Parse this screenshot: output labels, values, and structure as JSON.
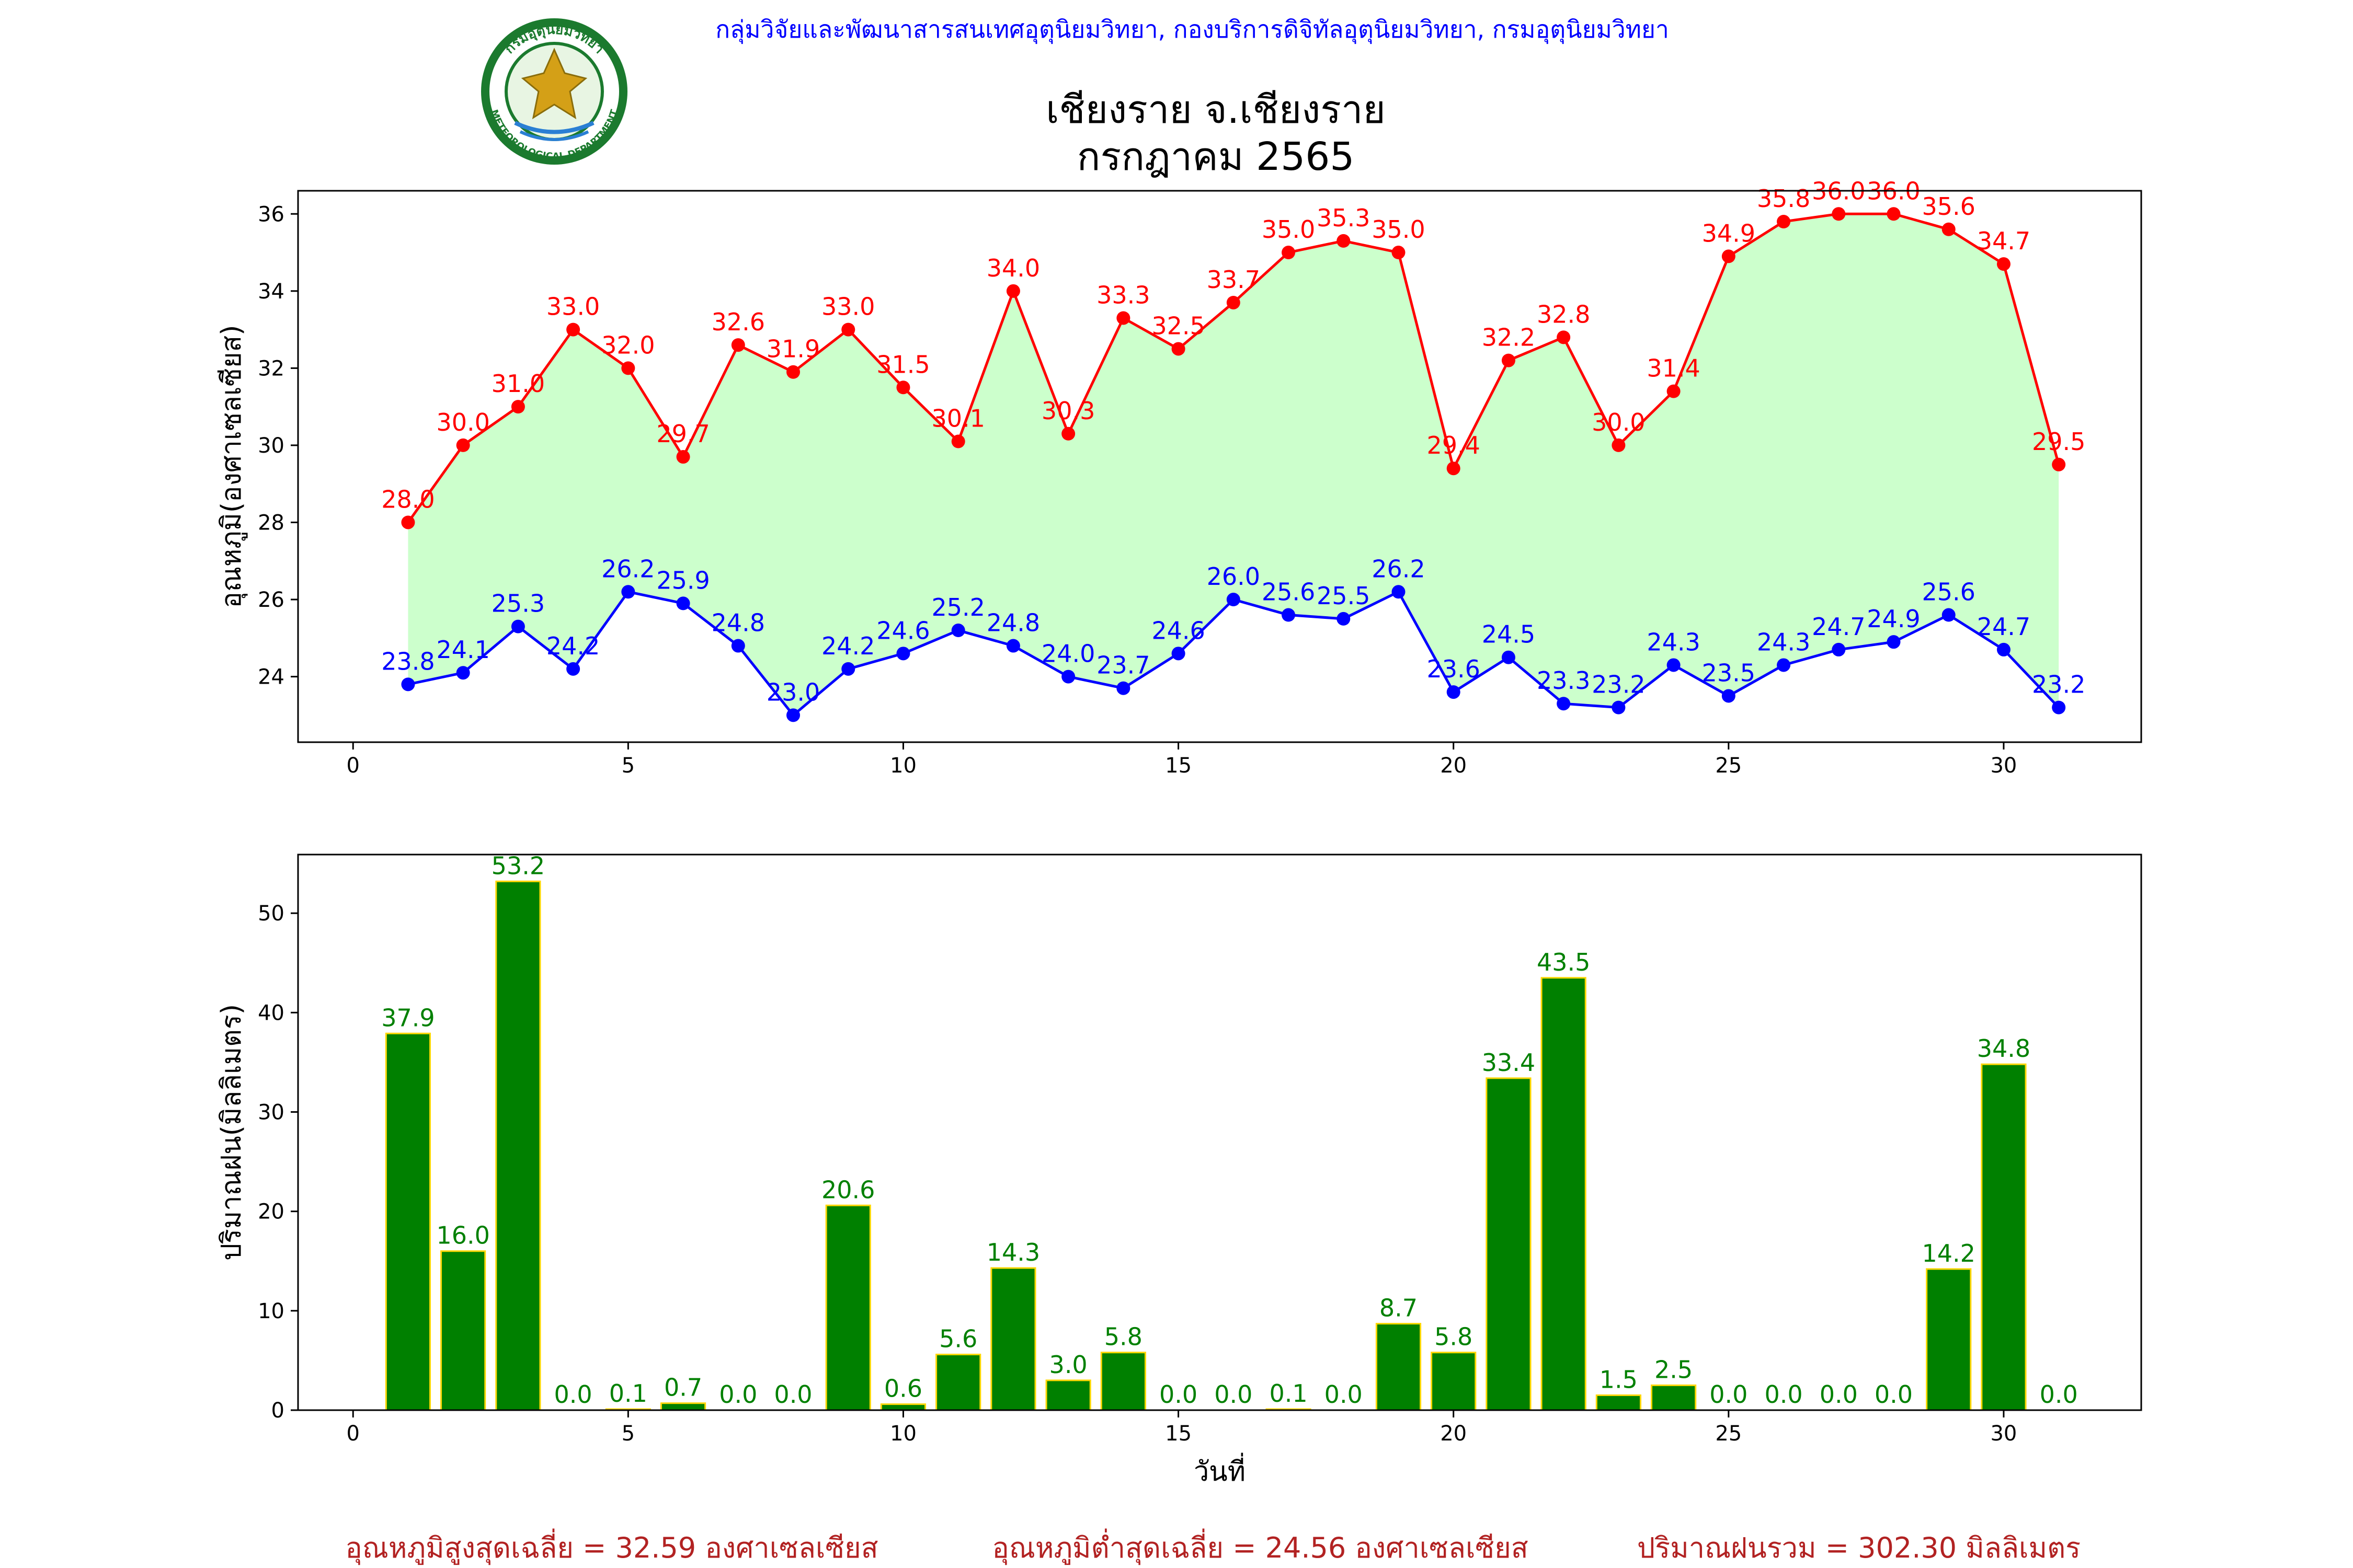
{
  "header": {
    "organization": "กลุ่มวิจัยและพัฒนาสารสนเทศอุตุนิยมวิทยา, กองบริการดิจิทัลอุตุนิยมวิทยา, กรมอุตุนิยมวิทยา",
    "title_line1": "เชียงราย จ.เชียงราย",
    "title_line2": "กรกฎาคม 2565",
    "logo_top_text": "กรมอุตุนิยมวิทยา",
    "logo_bottom_text": "METEOROLOGICAL DEPARTMENT"
  },
  "colors": {
    "max_temp": "#ff0000",
    "min_temp": "#0000ff",
    "fill": "#ccffcc",
    "rain_bar": "#008000",
    "rain_edge": "#ffd700",
    "rain_label": "#008000",
    "org_text": "#0000ff",
    "summary_text": "#b22222"
  },
  "chart_data": [
    {
      "type": "line",
      "ylabel": "อุณหภูมิ(องศาเซลเซียส)",
      "xlabel": "",
      "xlim": [
        -1,
        32.5
      ],
      "ylim": [
        22.3,
        36.6
      ],
      "xticks": [
        0,
        5,
        10,
        15,
        20,
        25,
        30
      ],
      "yticks": [
        24,
        26,
        28,
        30,
        32,
        34,
        36
      ],
      "x": [
        1,
        2,
        3,
        4,
        5,
        6,
        7,
        8,
        9,
        10,
        11,
        12,
        13,
        14,
        15,
        16,
        17,
        18,
        19,
        20,
        21,
        22,
        23,
        24,
        25,
        26,
        27,
        28,
        29,
        30,
        31
      ],
      "series": [
        {
          "key": "max",
          "values": [
            28.0,
            30.0,
            31.0,
            33.0,
            32.0,
            29.7,
            32.6,
            31.9,
            33.0,
            31.5,
            30.1,
            34.0,
            30.3,
            33.3,
            32.5,
            33.7,
            35.0,
            35.3,
            35.0,
            29.4,
            32.2,
            32.8,
            30.0,
            31.4,
            34.9,
            35.8,
            36.0,
            36.0,
            35.6,
            34.7,
            29.5
          ]
        },
        {
          "key": "min",
          "values": [
            23.8,
            24.1,
            25.3,
            24.2,
            26.2,
            25.9,
            24.8,
            23.0,
            24.2,
            24.6,
            25.2,
            24.8,
            24.0,
            23.7,
            24.6,
            26.0,
            25.6,
            25.5,
            26.2,
            23.6,
            24.5,
            23.3,
            23.2,
            24.3,
            23.5,
            24.3,
            24.7,
            24.9,
            25.6,
            24.7,
            23.2
          ]
        }
      ],
      "grid": false
    },
    {
      "type": "bar",
      "ylabel": "ปริมาณฝน(มิลลิเมตร)",
      "xlabel": "วันที่",
      "xlim": [
        -1,
        32.5
      ],
      "ylim": [
        0,
        55.9
      ],
      "xticks": [
        0,
        5,
        10,
        15,
        20,
        25,
        30
      ],
      "yticks": [
        0,
        10,
        20,
        30,
        40,
        50
      ],
      "x": [
        1,
        2,
        3,
        4,
        5,
        6,
        7,
        8,
        9,
        10,
        11,
        12,
        13,
        14,
        15,
        16,
        17,
        18,
        19,
        20,
        21,
        22,
        23,
        24,
        25,
        26,
        27,
        28,
        29,
        30,
        31
      ],
      "values": [
        37.9,
        16.0,
        53.2,
        0.0,
        0.1,
        0.7,
        0.0,
        0.0,
        20.6,
        0.6,
        5.6,
        14.3,
        3.0,
        5.8,
        0.0,
        0.0,
        0.1,
        0.0,
        8.7,
        5.8,
        33.4,
        43.5,
        1.5,
        2.5,
        0.0,
        0.0,
        0.0,
        0.0,
        14.2,
        34.8,
        0.0
      ],
      "grid": false
    }
  ],
  "summary": {
    "avg_max": "อุณหภูมิสูงสุดเฉลี่ย = 32.59 องศาเซลเซียส",
    "avg_min": "อุณหภูมิต่ำสุดเฉลี่ย = 24.56 องศาเซลเซียส",
    "total_rain": "ปริมาณฝนรวม = 302.30 มิลลิเมตร"
  }
}
